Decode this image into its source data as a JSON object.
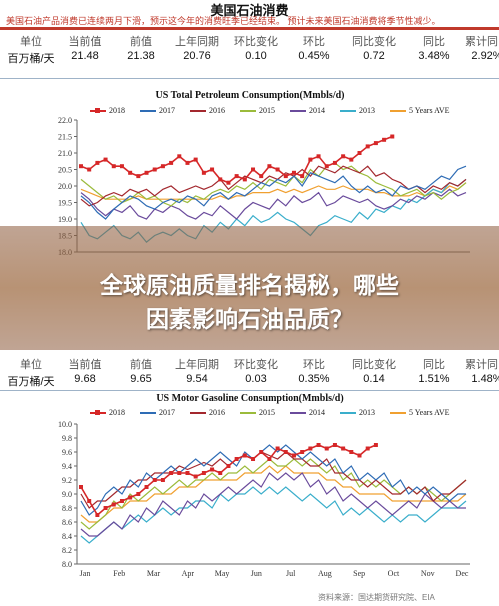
{
  "header": {
    "title": "美国石油消费",
    "subtitle": "美国石油产品消费已连续两月下滑，预示这今年的消费旺季已经结束。    预计未来美国石油消费将季节性减少。"
  },
  "stats_top": {
    "headers": [
      "单位",
      "当前值",
      "前值",
      "上年同期",
      "环比变化",
      "环比",
      "同比变化",
      "同比",
      "累计同比"
    ],
    "values": [
      "百万桶/天",
      "21.48",
      "21.38",
      "20.76",
      "0.10",
      "0.45%",
      "0.72",
      "3.48%",
      "2.92%"
    ]
  },
  "stats_bottom": {
    "headers": [
      "单位",
      "当前值",
      "前值",
      "上年同期",
      "环比变化",
      "环比",
      "同比变化",
      "同比",
      "累计同比"
    ],
    "values": [
      "百万桶/天",
      "9.68",
      "9.65",
      "9.54",
      "0.03",
      "0.35%",
      "0.14",
      "1.51%",
      "1.48%"
    ]
  },
  "overlay": {
    "line1": "全球原油质量排名揭秘，哪些",
    "line2": "因素影响石油品质？"
  },
  "source_text": "资料来源：国达期货研究院、EIA",
  "colors": {
    "2018": "#d62728",
    "2017": "#2e6cb5",
    "2016": "#a3282e",
    "2015": "#9bbb3b",
    "2014": "#6a4b9c",
    "2013": "#3aaecb",
    "5 Years AVE": "#f0a030",
    "accent": "#c0392b"
  },
  "chart_data": [
    {
      "type": "line",
      "title": "US Total Petroleum Consumption(Mmbls/d)",
      "xlabel": "",
      "ylabel": "",
      "ylim": [
        18.0,
        22.0
      ],
      "yticks": [
        "18.0",
        "18.5",
        "19.0",
        "19.5",
        "20.0",
        "20.5",
        "21.0",
        "21.5",
        "22.0"
      ],
      "legend_position": "top",
      "series": [
        {
          "name": "2018",
          "values": [
            20.6,
            20.5,
            20.7,
            20.8,
            20.6,
            20.6,
            20.4,
            20.3,
            20.4,
            20.5,
            20.6,
            20.7,
            20.9,
            20.7,
            20.8,
            20.4,
            20.5,
            20.2,
            20.1,
            20.3,
            20.2,
            20.5,
            20.3,
            20.6,
            20.5,
            20.3,
            20.4,
            20.3,
            20.8,
            20.9,
            20.6,
            20.7,
            20.9,
            20.8,
            21.0,
            21.2,
            21.3,
            21.4,
            21.5
          ]
        },
        {
          "name": "2017",
          "values": [
            19.7,
            19.5,
            19.2,
            19.0,
            19.3,
            19.5,
            19.7,
            19.6,
            19.4,
            19.3,
            19.5,
            19.6,
            19.5,
            19.7,
            19.6,
            19.4,
            19.7,
            19.8,
            19.6,
            19.8,
            19.7,
            19.9,
            20.1,
            20.0,
            20.2,
            20.1,
            20.3,
            20.0,
            20.4,
            20.3,
            20.2,
            20.1,
            20.3,
            20.0,
            19.8,
            20.0,
            19.8,
            19.9,
            19.7,
            20.0,
            19.9,
            20.0,
            19.9,
            20.1,
            20.3,
            20.2,
            20.5,
            20.6
          ]
        },
        {
          "name": "2016",
          "values": [
            19.6,
            19.4,
            19.5,
            19.7,
            19.8,
            19.7,
            19.9,
            19.8,
            19.9,
            19.7,
            19.9,
            20.0,
            19.8,
            19.9,
            20.0,
            19.9,
            20.0,
            20.2,
            19.9,
            20.1,
            20.3,
            20.2,
            20.1,
            20.3,
            20.2,
            20.4,
            20.3,
            20.5,
            20.3,
            20.6,
            20.5,
            20.4,
            20.6,
            20.5,
            20.4,
            20.6,
            20.3,
            20.4,
            20.2,
            20.1,
            19.9,
            20.0,
            19.8,
            20.0,
            19.9,
            20.1,
            20.0,
            20.2
          ]
        },
        {
          "name": "2015",
          "values": [
            20.2,
            20.0,
            19.8,
            19.6,
            19.7,
            19.5,
            19.6,
            19.8,
            19.6,
            19.7,
            19.5,
            19.4,
            19.6,
            19.5,
            19.7,
            19.6,
            19.8,
            19.9,
            19.8,
            20.0,
            19.9,
            20.1,
            19.9,
            20.2,
            20.1,
            20.0,
            20.3,
            20.1,
            20.5,
            20.3,
            20.6,
            20.7,
            20.5,
            20.6,
            20.4,
            20.3,
            20.1,
            20.0,
            19.9,
            19.7,
            19.8,
            19.9,
            19.7,
            19.8,
            19.6,
            19.8,
            19.9,
            20.1
          ]
        },
        {
          "name": "2014",
          "values": [
            19.8,
            19.6,
            19.3,
            19.1,
            19.3,
            19.2,
            19.4,
            19.1,
            19.0,
            19.3,
            19.2,
            19.4,
            19.3,
            19.1,
            19.0,
            19.2,
            19.1,
            19.4,
            19.2,
            19.0,
            19.3,
            19.5,
            19.4,
            19.3,
            19.6,
            19.4,
            19.7,
            19.5,
            19.6,
            19.8,
            19.4,
            19.5,
            19.7,
            19.6,
            19.5,
            19.6,
            19.4,
            19.3,
            19.4,
            19.6,
            19.5,
            19.7,
            19.6,
            19.8,
            19.7,
            19.9,
            19.7,
            19.8
          ]
        },
        {
          "name": "2013",
          "values": [
            18.9,
            18.5,
            18.4,
            18.6,
            18.8,
            18.5,
            18.4,
            18.6,
            18.3,
            18.5,
            18.6,
            18.5,
            18.7,
            18.5,
            18.4,
            18.8,
            18.6,
            18.9,
            18.7,
            19.0,
            18.8,
            19.1,
            18.9,
            19.0,
            19.2,
            19.0,
            18.9,
            18.7,
            18.5,
            18.8,
            18.9,
            19.1,
            19.0,
            18.9,
            19.2,
            19.0,
            19.3,
            19.2,
            19.4,
            19.3,
            19.6,
            19.5,
            19.7,
            19.9,
            19.8,
            20.1,
            20.0,
            20.2
          ]
        },
        {
          "name": "5 Years AVE",
          "values": [
            19.9,
            19.8,
            19.7,
            19.6,
            19.6,
            19.6,
            19.6,
            19.7,
            19.6,
            19.6,
            19.6,
            19.6,
            19.6,
            19.6,
            19.6,
            19.6,
            19.6,
            19.7,
            19.6,
            19.7,
            19.7,
            19.8,
            19.8,
            19.8,
            19.9,
            19.8,
            19.9,
            19.8,
            19.9,
            20.0,
            19.9,
            19.9,
            20.0,
            19.9,
            19.9,
            19.9,
            19.8,
            19.8,
            19.7,
            19.7,
            19.7,
            19.8,
            19.7,
            19.9,
            19.8,
            20.0,
            19.9,
            20.1
          ]
        }
      ]
    },
    {
      "type": "line",
      "title": "US Motor Gasoline Consumption(Mmbls/d)",
      "xlabel": "",
      "ylabel": "",
      "ylim": [
        8.0,
        10.0
      ],
      "yticks": [
        "8.0",
        "8.2",
        "8.4",
        "8.6",
        "8.8",
        "9.0",
        "9.2",
        "9.4",
        "9.6",
        "9.8",
        "10.0"
      ],
      "xticks": [
        "Jan",
        "Feb",
        "Mar",
        "Apr",
        "May",
        "Jun",
        "Jul",
        "Aug",
        "Sep",
        "Oct",
        "Nov",
        "Dec"
      ],
      "legend_position": "top",
      "series": [
        {
          "name": "2018",
          "values": [
            9.1,
            8.9,
            8.7,
            8.8,
            8.85,
            8.9,
            8.95,
            9.0,
            9.1,
            9.2,
            9.2,
            9.3,
            9.3,
            9.3,
            9.25,
            9.3,
            9.35,
            9.3,
            9.4,
            9.5,
            9.55,
            9.5,
            9.6,
            9.5,
            9.65,
            9.6,
            9.55,
            9.6,
            9.65,
            9.7,
            9.65,
            9.7,
            9.65,
            9.6,
            9.55,
            9.65,
            9.7
          ]
        },
        {
          "name": "2017",
          "values": [
            8.9,
            8.7,
            8.8,
            9.0,
            9.1,
            9.0,
            9.2,
            9.1,
            9.3,
            9.2,
            9.3,
            9.4,
            9.3,
            9.4,
            9.5,
            9.4,
            9.5,
            9.6,
            9.5,
            9.4,
            9.6,
            9.5,
            9.6,
            9.7,
            9.6,
            9.7,
            9.6,
            9.5,
            9.6,
            9.5,
            9.4,
            9.5,
            9.3,
            9.4,
            9.2,
            9.3,
            9.2,
            9.3,
            9.1,
            9.2,
            9.0,
            9.1,
            9.0,
            9.1,
            9.0,
            8.9,
            9.0,
            9.0
          ]
        },
        {
          "name": "2016",
          "values": [
            9.0,
            8.8,
            8.9,
            8.9,
            9.0,
            9.1,
            9.1,
            9.2,
            9.2,
            9.3,
            9.3,
            9.3,
            9.4,
            9.35,
            9.4,
            9.45,
            9.4,
            9.5,
            9.4,
            9.5,
            9.55,
            9.5,
            9.6,
            9.55,
            9.5,
            9.6,
            9.5,
            9.5,
            9.4,
            9.4,
            9.5,
            9.3,
            9.3,
            9.2,
            9.2,
            9.1,
            9.2,
            9.1,
            9.0,
            9.0,
            9.1,
            9.0,
            9.1,
            8.9,
            9.0,
            9.0,
            9.1,
            9.2
          ]
        },
        {
          "name": "2015",
          "values": [
            8.6,
            8.5,
            8.6,
            8.7,
            8.9,
            8.8,
            9.0,
            8.9,
            9.0,
            9.1,
            9.0,
            9.1,
            9.2,
            9.1,
            9.2,
            9.2,
            9.3,
            9.2,
            9.3,
            9.3,
            9.4,
            9.3,
            9.4,
            9.5,
            9.4,
            9.4,
            9.5,
            9.4,
            9.5,
            9.4,
            9.3,
            9.4,
            9.2,
            9.3,
            9.1,
            9.2,
            9.1,
            9.2,
            9.1,
            9.0,
            9.1,
            9.0,
            9.1,
            9.0,
            8.9,
            9.0,
            9.1,
            9.2
          ]
        },
        {
          "name": "2014",
          "values": [
            8.5,
            8.4,
            8.4,
            8.5,
            8.6,
            8.5,
            8.7,
            8.6,
            8.8,
            8.7,
            8.9,
            8.8,
            8.7,
            8.9,
            8.8,
            9.0,
            8.9,
            9.0,
            9.1,
            9.0,
            9.1,
            9.2,
            9.1,
            9.3,
            9.2,
            9.3,
            9.2,
            9.3,
            9.1,
            9.2,
            9.0,
            9.1,
            8.9,
            9.0,
            8.9,
            8.8,
            8.9,
            8.8,
            8.7,
            8.8,
            8.9,
            8.8,
            9.0,
            8.9,
            8.8,
            8.9,
            8.8,
            8.8
          ]
        },
        {
          "name": "2013",
          "values": [
            8.4,
            8.3,
            8.4,
            8.5,
            8.6,
            8.5,
            8.6,
            8.7,
            8.6,
            8.7,
            8.8,
            8.7,
            8.8,
            8.8,
            8.9,
            8.9,
            8.8,
            9.0,
            8.9,
            9.0,
            9.0,
            9.1,
            9.0,
            9.1,
            9.0,
            9.1,
            9.0,
            8.9,
            9.0,
            8.9,
            8.8,
            8.9,
            8.7,
            8.8,
            8.7,
            8.8,
            8.7,
            8.6,
            8.7,
            8.6,
            8.7,
            8.7,
            8.6,
            8.7,
            8.8,
            8.8,
            8.8,
            8.9
          ]
        },
        {
          "name": "5 Years AVE",
          "values": [
            8.7,
            8.6,
            8.6,
            8.7,
            8.8,
            8.8,
            8.9,
            8.9,
            8.9,
            9.0,
            9.0,
            9.0,
            9.1,
            9.1,
            9.1,
            9.2,
            9.2,
            9.2,
            9.2,
            9.2,
            9.3,
            9.3,
            9.3,
            9.4,
            9.3,
            9.4,
            9.3,
            9.3,
            9.3,
            9.3,
            9.2,
            9.2,
            9.1,
            9.1,
            9.0,
            9.0,
            9.0,
            9.0,
            8.9,
            8.9,
            8.9,
            8.9,
            8.9,
            8.9,
            8.9,
            8.9,
            8.9,
            9.0
          ]
        }
      ]
    }
  ]
}
